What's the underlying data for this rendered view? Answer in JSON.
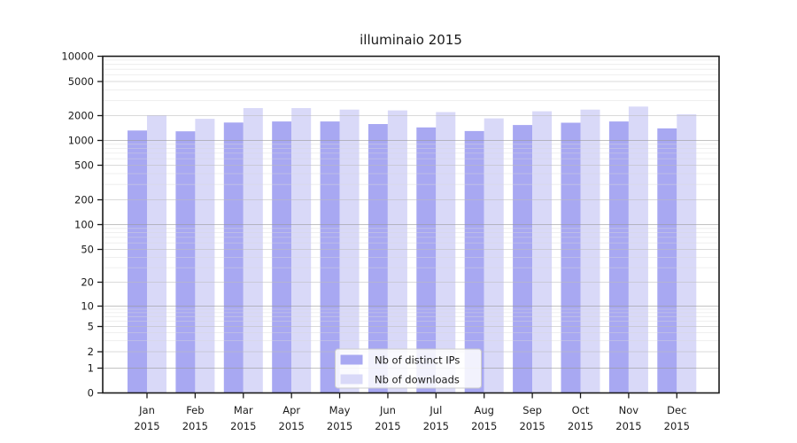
{
  "chart_data": {
    "type": "bar",
    "title": "illuminaio 2015",
    "categories": [
      "Jan",
      "Feb",
      "Mar",
      "Apr",
      "May",
      "Jun",
      "Jul",
      "Aug",
      "Sep",
      "Oct",
      "Nov",
      "Dec"
    ],
    "year_label": "2015",
    "series": [
      {
        "name": "Nb of distinct IPs",
        "color": "#a8a8f2",
        "values": [
          1320,
          1290,
          1650,
          1700,
          1700,
          1580,
          1440,
          1300,
          1540,
          1640,
          1700,
          1400
        ]
      },
      {
        "name": "Nb of downloads",
        "color": "#d9d9f8",
        "values": [
          2020,
          1830,
          2450,
          2450,
          2350,
          2300,
          2200,
          1850,
          2250,
          2350,
          2550,
          2080
        ]
      }
    ],
    "yscale": "log-with-zero",
    "y_ticks": [
      10000,
      5000,
      2000,
      1000,
      500,
      200,
      100,
      50,
      20,
      10,
      5,
      2,
      1,
      0
    ],
    "ylim": [
      0,
      10000
    ],
    "grid": true,
    "legend_position": "lower center",
    "grid_major_color": "#9a9a9a",
    "grid_mid_color": "#bbbbbb",
    "grid_minor_color": "#d9d9d9",
    "frame_color": "#1a1a1a",
    "legend_border_color": "#cccccc"
  }
}
